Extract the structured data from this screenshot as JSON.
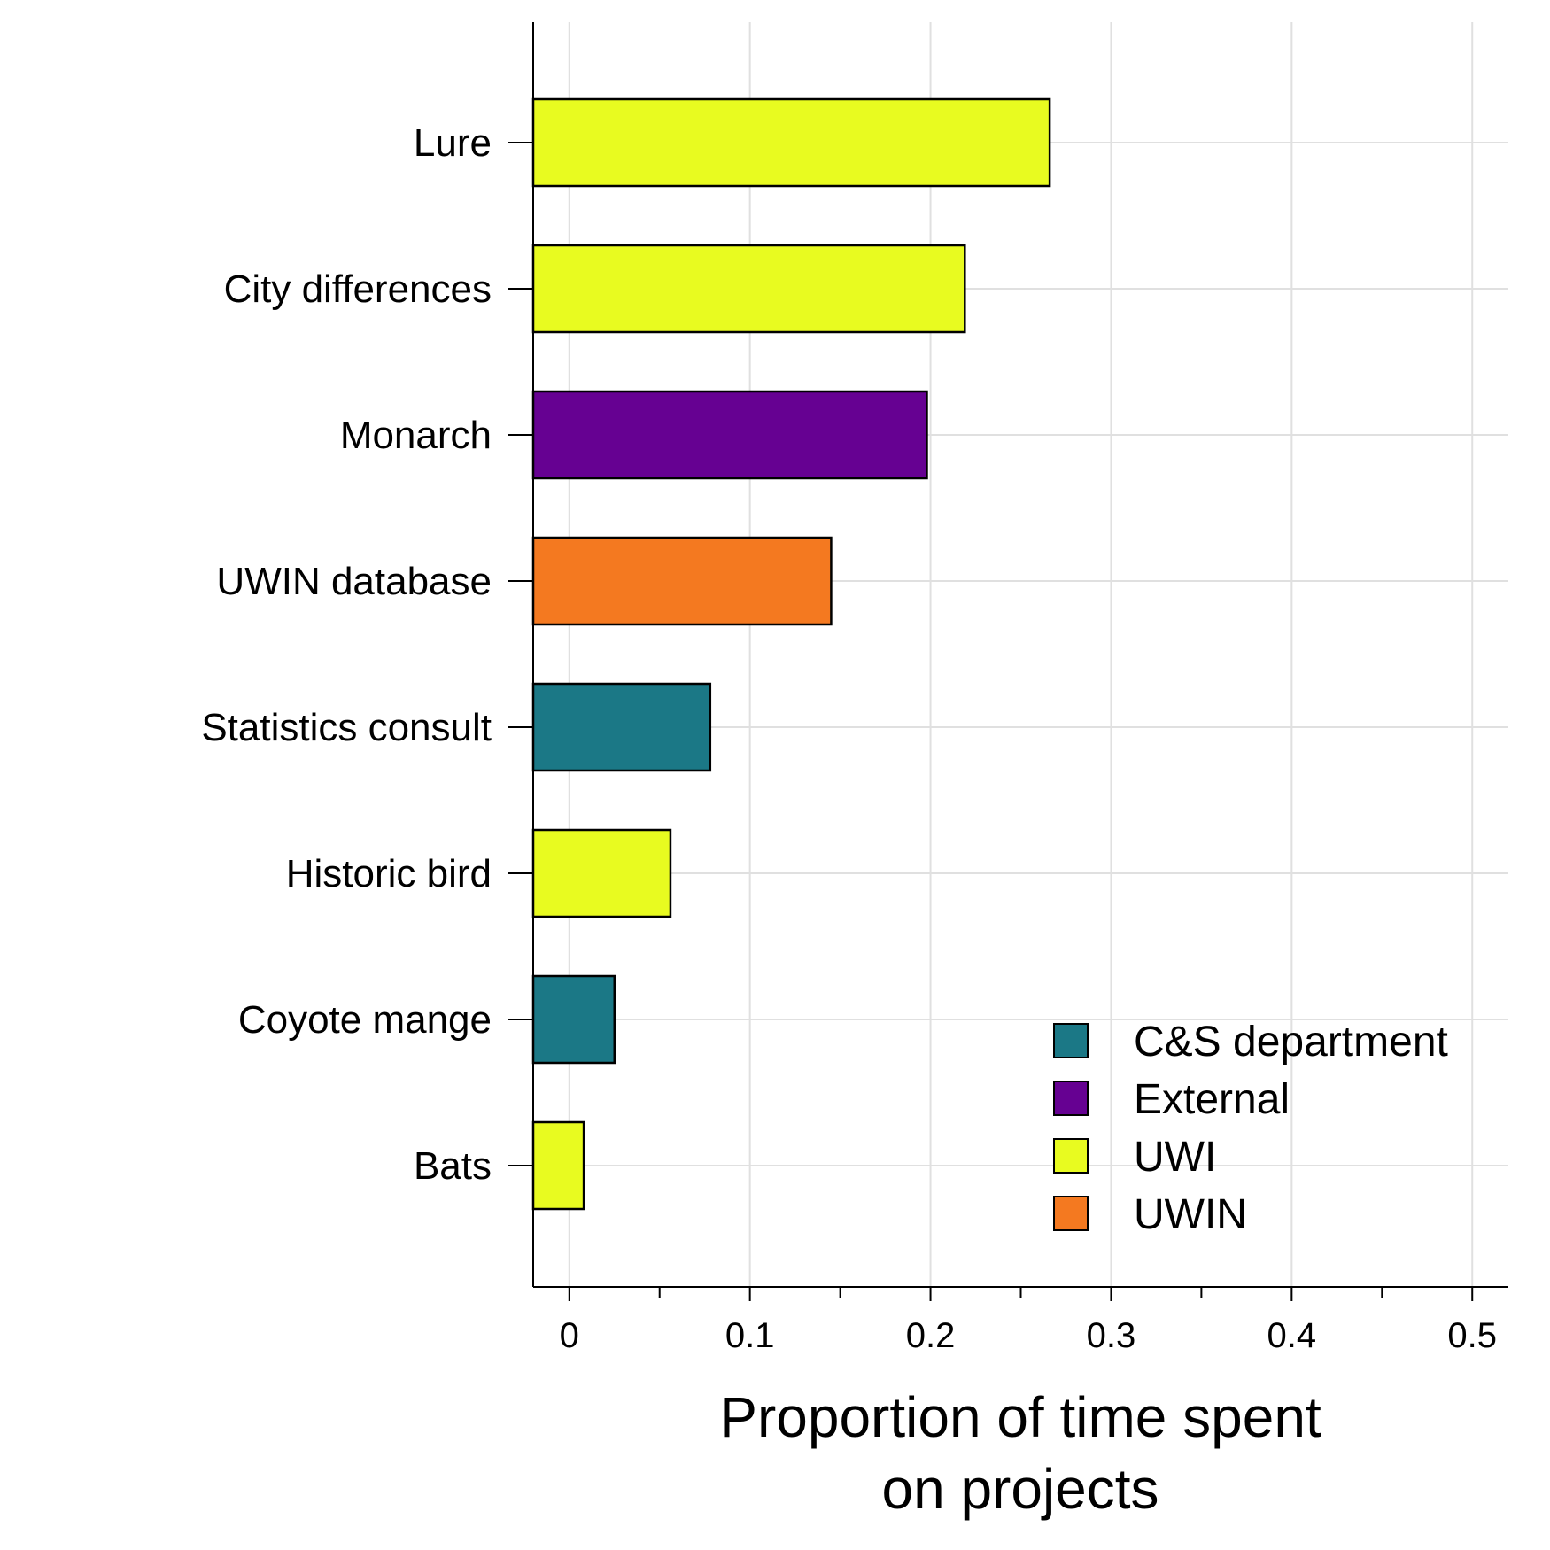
{
  "chart_data": {
    "type": "bar",
    "orientation": "horizontal",
    "categories": [
      "Lure",
      "City differences",
      "Monarch",
      "UWIN database",
      "Statistics consult",
      "Historic bird",
      "Coyote mange",
      "Bats"
    ],
    "values": [
      0.266,
      0.219,
      0.198,
      0.145,
      0.078,
      0.056,
      0.025,
      0.008
    ],
    "groups": [
      "UWI",
      "UWI",
      "External",
      "UWIN",
      "C&S department",
      "UWI",
      "C&S department",
      "UWI"
    ],
    "xlabel": "Proportion of time spent on projects",
    "xlabel_lines": [
      "Proportion of time spent",
      "on projects"
    ],
    "ylabel": "",
    "xlim": [
      -0.02,
      0.52
    ],
    "xticks": [
      0,
      0.1,
      0.2,
      0.3,
      0.4,
      0.5
    ],
    "xtick_labels": [
      "0",
      "0.1",
      "0.2",
      "0.3",
      "0.4",
      "0.5"
    ],
    "minor_xticks": [
      0.05,
      0.15,
      0.25,
      0.35,
      0.45
    ],
    "grid": true,
    "legend": {
      "placement": "bottom-right",
      "entries": [
        {
          "name": "C&S department",
          "color": "#1b7886"
        },
        {
          "name": "External",
          "color": "#660192"
        },
        {
          "name": "UWI",
          "color": "#e8fb20"
        },
        {
          "name": "UWIN",
          "color": "#f47920"
        }
      ]
    }
  }
}
